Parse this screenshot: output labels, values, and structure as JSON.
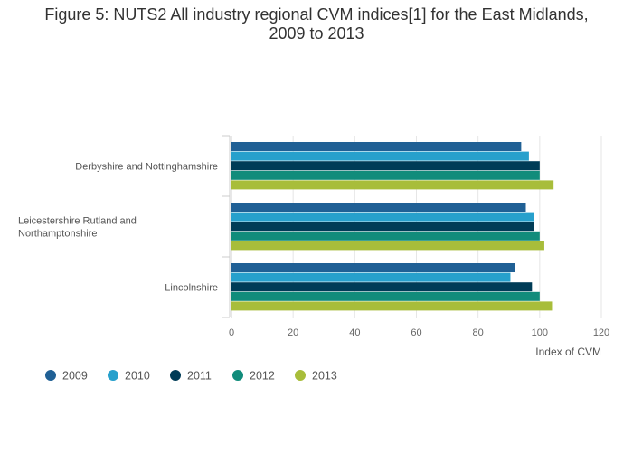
{
  "title_lines": [
    "Figure 5: NUTS2 All industry regional CVM indices[1] for the East Midlands,",
    "2009 to 2013"
  ],
  "chart_data": {
    "type": "bar",
    "orientation": "horizontal",
    "title": "Figure 5: NUTS2 All industry regional CVM indices[1] for the East Midlands, 2009 to 2013",
    "xlabel": "Index of CVM",
    "ylabel": "",
    "xlim": [
      0,
      120
    ],
    "xticks": [
      0,
      20,
      40,
      60,
      80,
      100,
      120
    ],
    "grid": true,
    "legend_position": "bottom-left",
    "categories": [
      {
        "lines": [
          "Derbyshire and Nottinghamshire"
        ]
      },
      {
        "lines": [
          "Leicestershire Rutland and",
          "Northamptonshire"
        ]
      },
      {
        "lines": [
          "Lincolnshire"
        ]
      }
    ],
    "series": [
      {
        "name": "2009",
        "color": "#206095",
        "values": [
          94,
          95.5,
          92
        ]
      },
      {
        "name": "2010",
        "color": "#27a0cc",
        "values": [
          96.5,
          98,
          90.5
        ]
      },
      {
        "name": "2011",
        "color": "#003c57",
        "values": [
          100,
          98,
          97.5
        ]
      },
      {
        "name": "2012",
        "color": "#118c7b",
        "values": [
          100,
          100,
          100
        ]
      },
      {
        "name": "2013",
        "color": "#a8bd3a",
        "values": [
          104.5,
          101.5,
          104
        ]
      }
    ]
  }
}
